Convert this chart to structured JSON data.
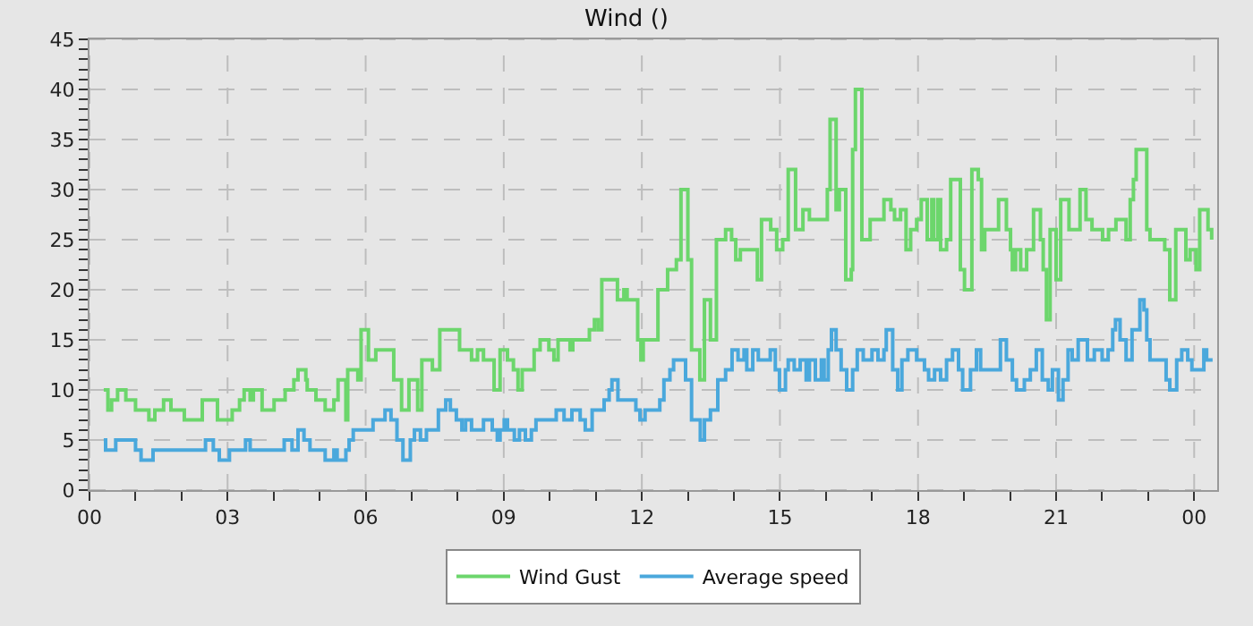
{
  "chart_data": {
    "type": "step",
    "title": "Wind ()",
    "legend": "bottom",
    "grid": true,
    "marker": "none",
    "line_style": "solid",
    "xlim": [
      0,
      24.5
    ],
    "ylim": [
      0,
      45
    ],
    "xticks": [
      {
        "value": 0,
        "label": "00"
      },
      {
        "value": 1,
        "label": null
      },
      {
        "value": 2,
        "label": null
      },
      {
        "value": 3,
        "label": "03"
      },
      {
        "value": 4,
        "label": null
      },
      {
        "value": 5,
        "label": null
      },
      {
        "value": 6,
        "label": "06"
      },
      {
        "value": 7,
        "label": null
      },
      {
        "value": 8,
        "label": null
      },
      {
        "value": 9,
        "label": "09"
      },
      {
        "value": 10,
        "label": null
      },
      {
        "value": 11,
        "label": null
      },
      {
        "value": 12,
        "label": "12"
      },
      {
        "value": 13,
        "label": null
      },
      {
        "value": 14,
        "label": null
      },
      {
        "value": 15,
        "label": "15"
      },
      {
        "value": 16,
        "label": null
      },
      {
        "value": 17,
        "label": null
      },
      {
        "value": 18,
        "label": "18"
      },
      {
        "value": 19,
        "label": null
      },
      {
        "value": 20,
        "label": null
      },
      {
        "value": 21,
        "label": "21"
      },
      {
        "value": 22,
        "label": null
      },
      {
        "value": 23,
        "label": null
      },
      {
        "value": 24,
        "label": "00"
      }
    ],
    "yticks": [
      0,
      {
        "value": 1,
        "label": null
      },
      {
        "value": 2,
        "label": null
      },
      {
        "value": 3,
        "label": null
      },
      {
        "value": 4,
        "label": null
      },
      5,
      {
        "value": 6,
        "label": null
      },
      {
        "value": 7,
        "label": null
      },
      {
        "value": 8,
        "label": null
      },
      {
        "value": 9,
        "label": null
      },
      10,
      {
        "value": 11,
        "label": null
      },
      {
        "value": 12,
        "label": null
      },
      {
        "value": 13,
        "label": null
      },
      {
        "value": 14,
        "label": null
      },
      15,
      {
        "value": 16,
        "label": null
      },
      {
        "value": 17,
        "label": null
      },
      {
        "value": 18,
        "label": null
      },
      {
        "value": 19,
        "label": null
      },
      20,
      {
        "value": 21,
        "label": null
      },
      {
        "value": 22,
        "label": null
      },
      {
        "value": 23,
        "label": null
      },
      {
        "value": 24,
        "label": null
      },
      25,
      {
        "value": 26,
        "label": null
      },
      {
        "value": 27,
        "label": null
      },
      {
        "value": 28,
        "label": null
      },
      {
        "value": 29,
        "label": null
      },
      30,
      {
        "value": 31,
        "label": null
      },
      {
        "value": 32,
        "label": null
      },
      {
        "value": 33,
        "label": null
      },
      {
        "value": 34,
        "label": null
      },
      35,
      {
        "value": 36,
        "label": null
      },
      {
        "value": 37,
        "label": null
      },
      {
        "value": 38,
        "label": null
      },
      {
        "value": 39,
        "label": null
      },
      40,
      {
        "value": 41,
        "label": null
      },
      {
        "value": 42,
        "label": null
      },
      {
        "value": 43,
        "label": null
      },
      {
        "value": 44,
        "label": null
      },
      45
    ],
    "series": [
      {
        "name": "Wind Gust",
        "color": "#6cd66c",
        "x": [
          0.31,
          0.4,
          0.48,
          0.61,
          0.79,
          1.0,
          1.29,
          1.42,
          1.61,
          1.77,
          2.06,
          2.45,
          2.78,
          3.1,
          3.26,
          3.36,
          3.49,
          3.56,
          3.75,
          4.01,
          4.25,
          4.44,
          4.53,
          4.7,
          4.73,
          4.92,
          5.12,
          5.31,
          5.4,
          5.57,
          5.61,
          5.83,
          5.9,
          6.06,
          6.22,
          6.61,
          6.78,
          6.94,
          7.13,
          7.22,
          7.45,
          7.61,
          8.04,
          8.3,
          8.43,
          8.56,
          8.79,
          8.92,
          9.08,
          9.21,
          9.31,
          9.4,
          9.66,
          9.79,
          9.98,
          10.09,
          10.18,
          10.44,
          10.5,
          10.86,
          10.97,
          11.05,
          11.13,
          11.47,
          11.61,
          11.68,
          11.91,
          11.98,
          12.03,
          12.35,
          12.56,
          12.75,
          12.85,
          13.0,
          13.08,
          13.26,
          13.36,
          13.49,
          13.62,
          13.82,
          13.95,
          14.04,
          14.14,
          14.51,
          14.6,
          14.8,
          14.93,
          15.06,
          15.18,
          15.34,
          15.5,
          15.64,
          16.03,
          16.09,
          16.22,
          16.29,
          16.43,
          16.55,
          16.58,
          16.64,
          16.78,
          16.96,
          17.26,
          17.41,
          17.49,
          17.62,
          17.74,
          17.84,
          17.97,
          18.07,
          18.2,
          18.3,
          18.34,
          18.43,
          18.49,
          18.62,
          18.71,
          18.92,
          19.01,
          19.17,
          19.31,
          19.38,
          19.45,
          19.75,
          19.92,
          20.01,
          20.05,
          20.12,
          20.23,
          20.36,
          20.51,
          20.66,
          20.72,
          20.79,
          20.87,
          21.0,
          21.1,
          21.28,
          21.52,
          21.65,
          21.78,
          22.01,
          22.14,
          22.3,
          22.52,
          22.61,
          22.68,
          22.74,
          22.97,
          23.04,
          23.3,
          23.36,
          23.47,
          23.6,
          23.82,
          23.91,
          24.04,
          24.12,
          24.3,
          24.38
        ],
        "values": [
          10,
          8,
          9,
          10,
          9,
          8,
          7,
          8,
          9,
          8,
          7,
          9,
          7,
          8,
          9,
          10,
          9,
          10,
          8,
          9,
          10,
          11,
          12,
          11,
          10,
          9,
          8,
          9,
          11,
          7,
          12,
          11,
          16,
          13,
          14,
          11,
          8,
          11,
          8,
          13,
          12,
          16,
          14,
          13,
          14,
          13,
          10,
          14,
          13,
          12,
          10,
          12,
          14,
          15,
          14,
          13,
          15,
          14,
          15,
          16,
          17,
          16,
          21,
          19,
          20,
          19,
          15,
          13,
          15,
          20,
          22,
          23,
          30,
          23,
          14,
          11,
          19,
          15,
          25,
          26,
          25,
          23,
          24,
          21,
          27,
          26,
          24,
          25,
          32,
          26,
          28,
          27,
          30,
          37,
          28,
          30,
          21,
          22,
          34,
          40,
          25,
          27,
          29,
          28,
          27,
          28,
          24,
          26,
          27,
          29,
          25,
          29,
          25,
          29,
          24,
          25,
          31,
          22,
          20,
          32,
          31,
          24,
          26,
          29,
          26,
          24,
          22,
          24,
          22,
          24,
          28,
          25,
          22,
          17,
          26,
          21,
          29,
          26,
          30,
          27,
          26,
          25,
          26,
          27,
          25,
          29,
          31,
          34,
          26,
          25,
          25,
          24,
          19,
          26,
          23,
          24,
          22,
          28,
          26,
          25
        ]
      },
      {
        "name": "Average speed",
        "color": "#4aa8dc",
        "x": [
          0.31,
          0.35,
          0.57,
          1.0,
          1.12,
          1.38,
          2.52,
          2.69,
          2.82,
          3.04,
          3.39,
          3.49,
          4.23,
          4.4,
          4.53,
          4.66,
          4.79,
          5.12,
          5.31,
          5.38,
          5.57,
          5.64,
          5.73,
          6.16,
          6.42,
          6.55,
          6.68,
          6.81,
          6.97,
          7.06,
          7.19,
          7.32,
          7.58,
          7.74,
          7.84,
          7.97,
          8.09,
          8.17,
          8.3,
          8.56,
          8.75,
          8.86,
          8.92,
          9.01,
          9.08,
          9.23,
          9.34,
          9.47,
          9.6,
          9.7,
          10.14,
          10.31,
          10.48,
          10.66,
          10.77,
          10.92,
          11.18,
          11.29,
          11.35,
          11.48,
          11.87,
          11.96,
          12.07,
          12.39,
          12.48,
          12.61,
          12.69,
          12.95,
          13.08,
          13.27,
          13.36,
          13.49,
          13.65,
          13.82,
          13.96,
          14.09,
          14.22,
          14.28,
          14.41,
          14.53,
          14.79,
          14.9,
          14.99,
          15.12,
          15.18,
          15.31,
          15.44,
          15.57,
          15.64,
          15.77,
          15.9,
          15.96,
          16.05,
          16.12,
          16.22,
          16.33,
          16.45,
          16.58,
          16.68,
          16.81,
          17.0,
          17.13,
          17.26,
          17.31,
          17.45,
          17.56,
          17.65,
          17.78,
          17.97,
          18.14,
          18.23,
          18.36,
          18.49,
          18.62,
          18.75,
          18.88,
          18.97,
          19.14,
          19.27,
          19.36,
          19.79,
          19.92,
          20.05,
          20.14,
          20.31,
          20.44,
          20.57,
          20.7,
          20.83,
          20.92,
          21.05,
          21.15,
          21.26,
          21.35,
          21.48,
          21.68,
          21.83,
          22.0,
          22.13,
          22.23,
          22.29,
          22.39,
          22.52,
          22.65,
          22.82,
          22.91,
          22.97,
          23.04,
          23.39,
          23.47,
          23.62,
          23.73,
          23.86,
          23.95,
          24.21,
          24.27,
          24.4
        ],
        "values": [
          5,
          4,
          5,
          4,
          3,
          4,
          5,
          4,
          3,
          4,
          5,
          4,
          5,
          4,
          6,
          5,
          4,
          3,
          4,
          3,
          4,
          5,
          6,
          7,
          8,
          7,
          5,
          3,
          5,
          6,
          5,
          6,
          8,
          9,
          8,
          7,
          6,
          7,
          6,
          7,
          6,
          5,
          6,
          7,
          6,
          5,
          6,
          5,
          6,
          7,
          8,
          7,
          8,
          7,
          6,
          8,
          9,
          10,
          11,
          9,
          8,
          7,
          8,
          9,
          11,
          12,
          13,
          11,
          7,
          5,
          7,
          8,
          11,
          12,
          14,
          13,
          14,
          12,
          14,
          13,
          14,
          12,
          10,
          12,
          13,
          12,
          13,
          11,
          13,
          11,
          13,
          11,
          14,
          16,
          14,
          12,
          10,
          12,
          14,
          13,
          14,
          13,
          14,
          16,
          12,
          10,
          13,
          14,
          13,
          12,
          11,
          12,
          11,
          13,
          14,
          12,
          10,
          12,
          14,
          12,
          15,
          13,
          11,
          10,
          11,
          12,
          14,
          11,
          10,
          12,
          9,
          11,
          14,
          13,
          15,
          13,
          14,
          13,
          14,
          16,
          17,
          15,
          13,
          16,
          19,
          18,
          15,
          13,
          11,
          10,
          13,
          14,
          13,
          12,
          14,
          13,
          13
        ]
      }
    ]
  }
}
